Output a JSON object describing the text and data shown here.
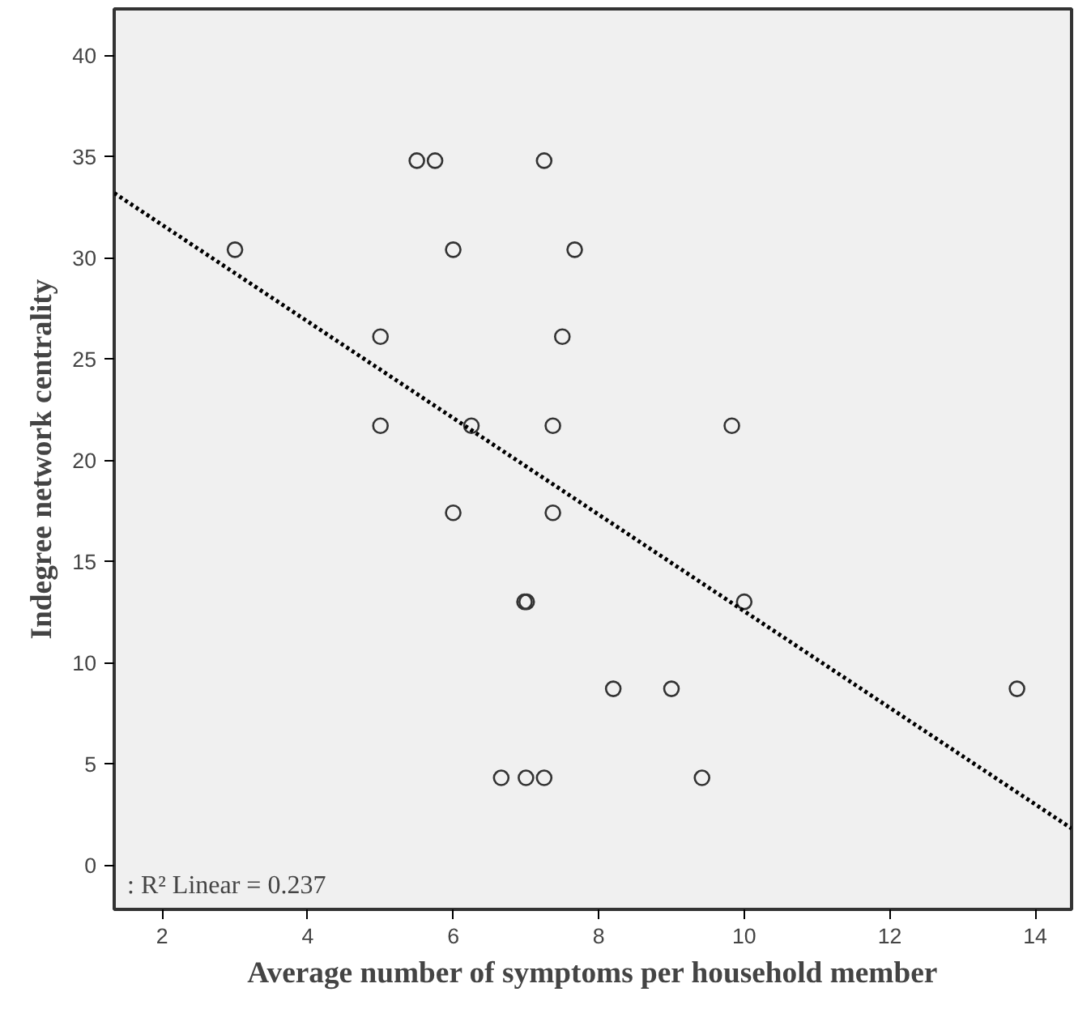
{
  "chart_data": {
    "type": "scatter",
    "xlabel": "Average number of symptoms per household member",
    "ylabel": "Indegree network centrality",
    "xlim": [
      1.34,
      14.5
    ],
    "ylim": [
      -2.2,
      42.3
    ],
    "xticks": [
      2,
      4,
      6,
      8,
      10,
      12,
      14
    ],
    "yticks": [
      0,
      5,
      10,
      15,
      20,
      25,
      30,
      35,
      40
    ],
    "grid": false,
    "marker": "circle",
    "series": [
      {
        "color": "#333333",
        "x": [
          5.5,
          5.75,
          7.25,
          3,
          6,
          7.67,
          5,
          7.5,
          5,
          6.25,
          7.37,
          9.83,
          6,
          7.37,
          6.98,
          7.01,
          10,
          8.2,
          9,
          13.75,
          6.66,
          7,
          7.25,
          9.42
        ],
        "values": [
          34.8,
          34.8,
          34.8,
          30.4,
          30.4,
          30.4,
          26.1,
          26.1,
          21.7,
          21.7,
          21.7,
          21.7,
          17.4,
          17.4,
          13.0,
          13.0,
          13.0,
          8.7,
          8.7,
          8.7,
          4.3,
          4.3,
          4.3,
          4.3
        ]
      },
      {
        "type": "line",
        "color": "#000000",
        "line_style": "dotted",
        "marker": "none",
        "x": [
          1.34,
          14.5
        ],
        "values": [
          33.2,
          1.8
        ]
      }
    ],
    "annotations": [
      ": R² Linear = 0.237"
    ]
  }
}
